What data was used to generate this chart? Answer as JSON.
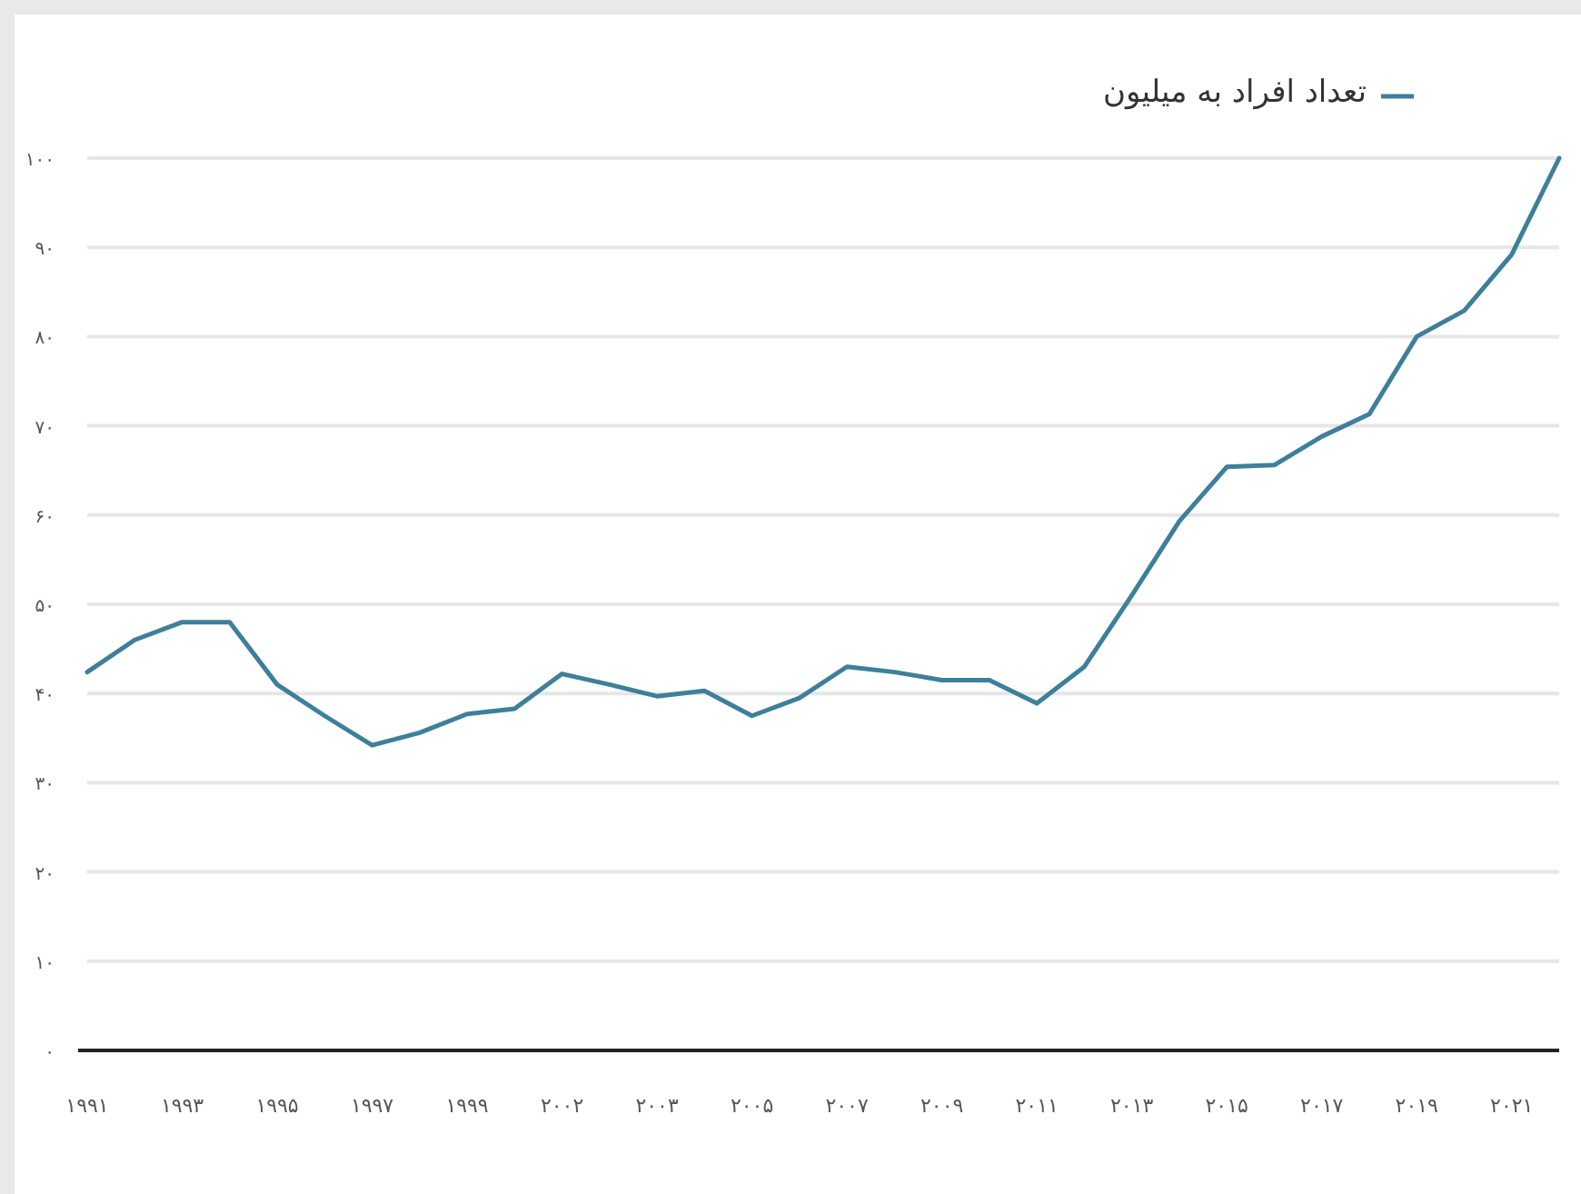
{
  "chart_data": {
    "type": "line",
    "categories": [
      "۱۹۹۱",
      null,
      "۱۹۹۳",
      null,
      "۱۹۹۵",
      null,
      "۱۹۹۷",
      null,
      "۱۹۹۹",
      null,
      "۲۰۰۲",
      null,
      "۲۰۰۳",
      null,
      "۲۰۰۵",
      null,
      "۲۰۰۷",
      null,
      "۲۰۰۹",
      null,
      "۲۰۱۱",
      null,
      "۲۰۱۳",
      null,
      "۲۰۱۵",
      null,
      "۲۰۱۷",
      null,
      "۲۰۱۹",
      null,
      "۲۰۲۱",
      null
    ],
    "series": [
      {
        "name": "تعداد افراد به میلیون",
        "color": "#3e7f9b",
        "values": [
          42.4,
          46,
          48,
          48,
          41,
          37.5,
          34.2,
          35.6,
          37.7,
          38.3,
          42.2,
          41,
          39.7,
          40.3,
          37.5,
          39.5,
          43,
          42.4,
          41.5,
          41.5,
          38.9,
          43,
          51,
          59.3,
          65.4,
          65.6,
          68.8,
          71.3,
          80,
          82.9,
          89.2,
          100
        ]
      }
    ],
    "ylim": [
      0,
      100
    ],
    "yticks": [
      {
        "value": 0,
        "label": "۰"
      },
      {
        "value": 10,
        "label": "۱۰"
      },
      {
        "value": 20,
        "label": "۲۰"
      },
      {
        "value": 30,
        "label": "۳۰"
      },
      {
        "value": 40,
        "label": "۴۰"
      },
      {
        "value": 50,
        "label": "۵۰"
      },
      {
        "value": 60,
        "label": "۶۰"
      },
      {
        "value": 70,
        "label": "۷۰"
      },
      {
        "value": 80,
        "label": "۸۰"
      },
      {
        "value": 90,
        "label": "۹۰"
      },
      {
        "value": 100,
        "label": "۱۰۰"
      }
    ],
    "grid": "y",
    "legend": "top right"
  }
}
